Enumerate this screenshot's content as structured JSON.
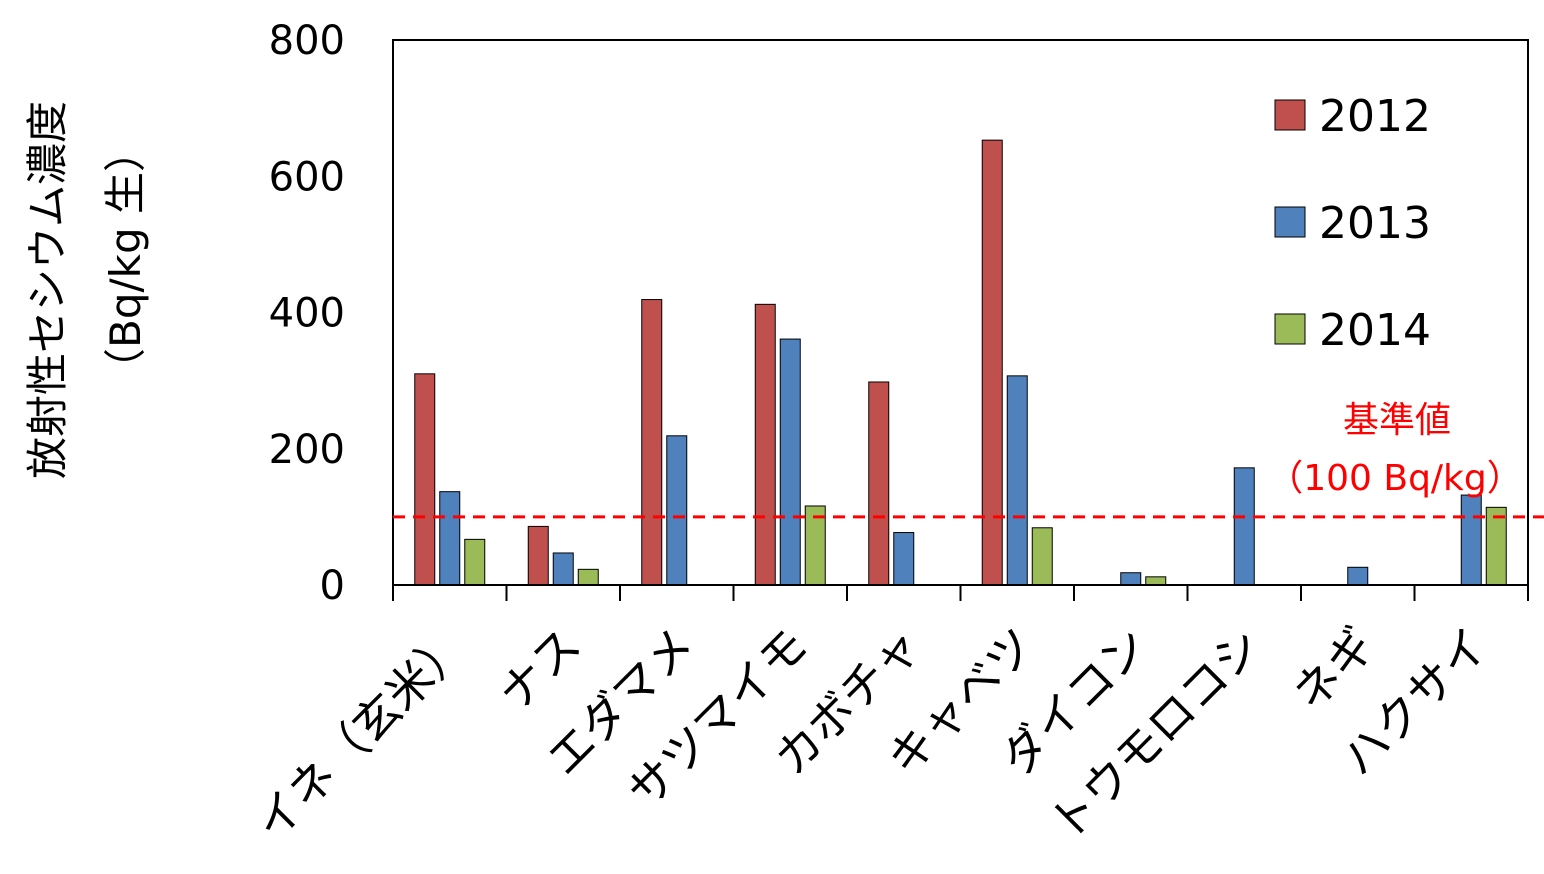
{
  "chart_data": {
    "type": "bar",
    "title": "",
    "xlabel": "",
    "ylabel_line1": "放射性セシウム濃度",
    "ylabel_line2": "（Bq/kg 生）",
    "ylim": [
      0,
      800
    ],
    "yticks": [
      0,
      200,
      400,
      600,
      800
    ],
    "categories": [
      "イネ（玄米）",
      "ナス",
      "エダマメ",
      "サツマイモ",
      "カボチャ",
      "キャベツ",
      "ダイコン",
      "トウモロコシ",
      "ネギ",
      "ハクサイ"
    ],
    "series": [
      {
        "name": "2012",
        "color": "#c0504d",
        "values": [
          310,
          86,
          419,
          412,
          298,
          653,
          null,
          null,
          null,
          null
        ]
      },
      {
        "name": "2013",
        "color": "#4f81bd",
        "values": [
          137,
          47,
          219,
          361,
          77,
          307,
          18,
          172,
          26,
          132
        ]
      },
      {
        "name": "2014",
        "color": "#9bbb59",
        "values": [
          67,
          23,
          null,
          116,
          null,
          84,
          12,
          null,
          null,
          114
        ]
      }
    ],
    "reference_line": {
      "value": 100,
      "color": "#ff0000",
      "label_line1": "基準値",
      "label_line2": "（100 Bq/kg）"
    },
    "legend_position": "top-right",
    "grid": false
  }
}
